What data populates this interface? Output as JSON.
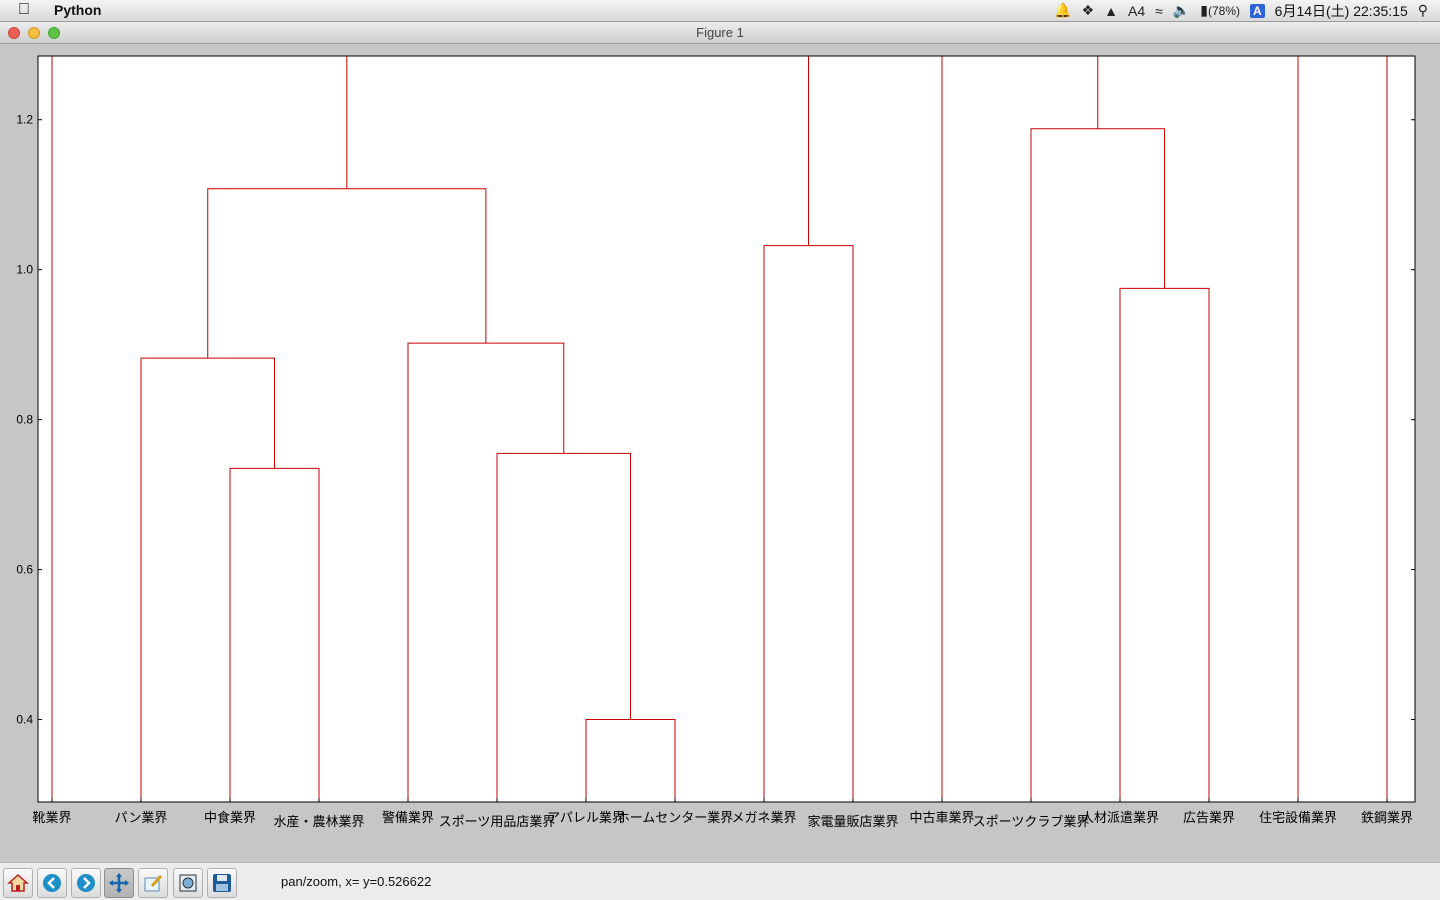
{
  "menubar": {
    "app_name": "Python",
    "im_count": "4",
    "battery": "(78%)",
    "input_method": "A",
    "clock": "6月14日(土)  22:35:15",
    "icons": [
      "apple-icon",
      "bell-icon",
      "dropbox-icon",
      "drive-icon",
      "input-tool-icon",
      "wifi-icon",
      "volume-icon",
      "battery-icon",
      "spotlight-icon"
    ]
  },
  "window": {
    "title": "Figure 1"
  },
  "toolbar": {
    "buttons": [
      "home",
      "back",
      "forward",
      "pan",
      "subplots",
      "configure",
      "save"
    ],
    "status": "pan/zoom, x= y=0.526622"
  },
  "chart_data": {
    "type": "dendrogram",
    "color": "#cc0000",
    "labels": [
      "靴業界",
      "パン業界",
      "中食業界",
      "水産・農林業界",
      "警備業界",
      "スポーツ用品店業界",
      "アパレル業界",
      "ホームセンター業界",
      "メガネ業界",
      "家電量販店業界",
      "中古車業界",
      "スポーツクラブ業界",
      "人材派遣業界",
      "広告業界",
      "住宅設備業界",
      "鉄鋼業界"
    ],
    "ylim": [
      0.29,
      1.285
    ],
    "yticks": [
      0.4,
      0.6,
      0.8,
      1.0,
      1.2
    ],
    "ytick_labels": [
      "0.4",
      "0.6",
      "0.8",
      "1.0",
      "1.2"
    ],
    "links": [
      {
        "left": 6,
        "right": 7,
        "height": 0.4
      },
      {
        "left": 2,
        "right": 3,
        "height": 0.735
      },
      {
        "left": 5,
        "right": 6.5,
        "height": 0.755
      },
      {
        "left": 1,
        "right": 2.5,
        "height": 0.882
      },
      {
        "left": 4,
        "right": 5.75,
        "height": 0.902
      },
      {
        "left": 12,
        "right": 13,
        "height": 0.975
      },
      {
        "left": 8,
        "right": 9,
        "height": 1.032
      },
      {
        "left": 1.75,
        "right": 4.875,
        "height": 1.108
      },
      {
        "left": 11,
        "right": 12.5,
        "height": 1.188
      }
    ],
    "top_stems": [
      0,
      3.3125,
      8.5,
      10,
      11.75,
      14,
      15
    ]
  }
}
